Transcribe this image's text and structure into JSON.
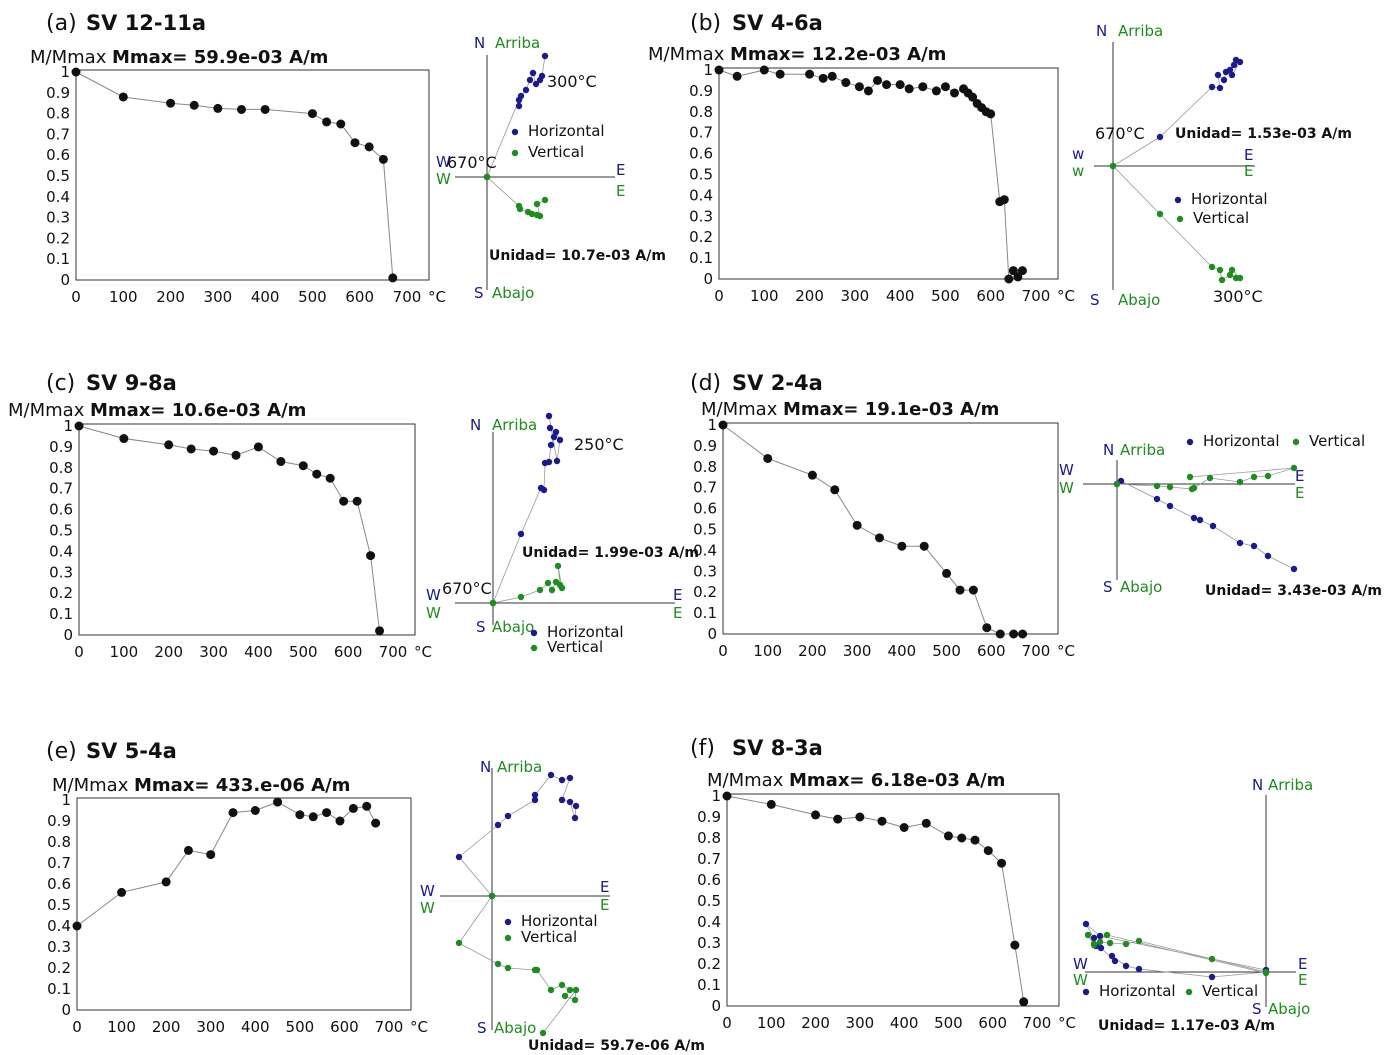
{
  "chart_data": [
    {
      "type": "line",
      "panel": "(a)",
      "sample": "SV 12-11a",
      "ylabel": "M/Mmax",
      "mmax_label": "Mmax= 59.9e-03  A/m",
      "xunit": "°C",
      "x_ticks": [
        0,
        100,
        200,
        300,
        400,
        500,
        600,
        700
      ],
      "y_ticks": [
        0,
        0.1,
        0.2,
        0.3,
        0.4,
        0.5,
        0.6,
        0.7,
        0.8,
        0.9,
        1
      ],
      "xlim": [
        0,
        700
      ],
      "ylim": [
        0,
        1
      ],
      "x": [
        0,
        100,
        200,
        250,
        300,
        350,
        400,
        500,
        530,
        560,
        590,
        620,
        650,
        670
      ],
      "y": [
        1.0,
        0.88,
        0.85,
        0.84,
        0.825,
        0.82,
        0.82,
        0.8,
        0.76,
        0.75,
        0.66,
        0.64,
        0.58,
        0.01
      ],
      "zijderveld": {
        "labels": {
          "N": "N",
          "S": "S",
          "E": "E",
          "W": "W",
          "E2": "E",
          "W2": "W",
          "up": "Arriba",
          "down": "Abajo"
        },
        "legend": {
          "horizontal": "Horizontal",
          "vertical": "Vertical"
        },
        "unidad": "Unidad=  10.7e-03 A/m",
        "annotations": [
          "300°C",
          "670°C"
        ]
      }
    },
    {
      "type": "line",
      "panel": "(b)",
      "sample": "SV 4-6a",
      "ylabel": "M/Mmax",
      "mmax_label": "Mmax= 12.2e-03  A/m",
      "xunit": "°C",
      "x_ticks": [
        0,
        100,
        200,
        300,
        400,
        500,
        600,
        700
      ],
      "y_ticks": [
        0,
        0.1,
        0.2,
        0.3,
        0.4,
        0.5,
        0.6,
        0.7,
        0.8,
        0.9,
        1
      ],
      "xlim": [
        0,
        700
      ],
      "ylim": [
        0,
        1
      ],
      "x": [
        0,
        40,
        100,
        135,
        200,
        230,
        250,
        280,
        310,
        330,
        350,
        370,
        400,
        420,
        450,
        480,
        500,
        520,
        540,
        550,
        560,
        570,
        580,
        590,
        600,
        620,
        630,
        640,
        650,
        660,
        670
      ],
      "y": [
        1.0,
        0.97,
        1.0,
        0.98,
        0.98,
        0.96,
        0.97,
        0.94,
        0.92,
        0.9,
        0.95,
        0.93,
        0.93,
        0.91,
        0.92,
        0.9,
        0.92,
        0.89,
        0.91,
        0.89,
        0.87,
        0.84,
        0.82,
        0.8,
        0.79,
        0.37,
        0.38,
        0.0,
        0.04,
        0.01,
        0.04
      ],
      "zijderveld": {
        "labels": {
          "N": "N",
          "S": "S",
          "E": "E",
          "W": "w",
          "E2": "E",
          "W2": "w",
          "up": "Arriba",
          "down": "Abajo"
        },
        "legend": {
          "horizontal": "Horizontal",
          "vertical": "Vertical"
        },
        "unidad": "Unidad=  1.53e-03 A/m",
        "annotations": [
          "670°C",
          "300°C"
        ]
      }
    },
    {
      "type": "line",
      "panel": "(c)",
      "sample": "SV 9-8a",
      "ylabel": "M/Mmax",
      "mmax_label": "Mmax= 10.6e-03  A/m",
      "xunit": "°C",
      "x_ticks": [
        0,
        100,
        200,
        300,
        400,
        500,
        600,
        700
      ],
      "y_ticks": [
        0,
        0.1,
        0.2,
        0.3,
        0.4,
        0.5,
        0.6,
        0.7,
        0.8,
        0.9,
        1
      ],
      "xlim": [
        0,
        700
      ],
      "ylim": [
        0,
        1
      ],
      "x": [
        0,
        100,
        200,
        250,
        300,
        350,
        400,
        450,
        500,
        530,
        560,
        590,
        620,
        650,
        670
      ],
      "y": [
        1.0,
        0.94,
        0.91,
        0.89,
        0.88,
        0.86,
        0.9,
        0.83,
        0.81,
        0.77,
        0.75,
        0.64,
        0.64,
        0.38,
        0.02
      ],
      "zijderveld": {
        "labels": {
          "N": "N",
          "S": "S",
          "E": "E",
          "W": "W",
          "E2": "E",
          "W2": "W",
          "up": "Arriba",
          "down": "Abajo"
        },
        "legend": {
          "horizontal": "Horizontal",
          "vertical": "Vertical"
        },
        "unidad": "Unidad=  1.99e-03 A/m",
        "annotations": [
          "250°C",
          "670°C"
        ]
      }
    },
    {
      "type": "line",
      "panel": "(d)",
      "sample": "SV 2-4a",
      "ylabel": "M/Mmax",
      "mmax_label": "Mmax= 19.1e-03  A/m",
      "xunit": "°C",
      "x_ticks": [
        0,
        100,
        200,
        300,
        400,
        500,
        600,
        700
      ],
      "y_ticks": [
        0,
        0.1,
        0.2,
        0.3,
        0.4,
        0.5,
        0.6,
        0.7,
        0.8,
        0.9,
        1
      ],
      "xlim": [
        0,
        700
      ],
      "ylim": [
        0,
        1
      ],
      "x": [
        0,
        100,
        200,
        250,
        300,
        350,
        400,
        450,
        500,
        530,
        560,
        590,
        620,
        650,
        670
      ],
      "y": [
        1.0,
        0.84,
        0.76,
        0.69,
        0.52,
        0.46,
        0.42,
        0.42,
        0.29,
        0.21,
        0.21,
        0.03,
        0.0,
        0.0,
        0.0
      ],
      "zijderveld": {
        "labels": {
          "N": "N",
          "S": "S",
          "E": "E",
          "W": "W",
          "E2": "E",
          "W2": "W",
          "up": "Arriba",
          "down": "Abajo"
        },
        "legend": {
          "horizontal": "Horizontal",
          "vertical": "Vertical"
        },
        "unidad": "Unidad=  3.43e-03 A/m",
        "annotations": []
      }
    },
    {
      "type": "line",
      "panel": "(e)",
      "sample": "SV 5-4a",
      "ylabel": "M/Mmax",
      "mmax_label": "Mmax= 433.e-06  A/m",
      "xunit": "°C",
      "x_ticks": [
        0,
        100,
        200,
        300,
        400,
        500,
        600,
        700
      ],
      "y_ticks": [
        0,
        0.1,
        0.2,
        0.3,
        0.4,
        0.5,
        0.6,
        0.7,
        0.8,
        0.9,
        1
      ],
      "xlim": [
        0,
        700
      ],
      "ylim": [
        0,
        1
      ],
      "x": [
        0,
        100,
        200,
        250,
        300,
        350,
        400,
        450,
        500,
        530,
        560,
        590,
        620,
        650,
        670
      ],
      "y": [
        0.4,
        0.56,
        0.61,
        0.76,
        0.74,
        0.94,
        0.95,
        0.99,
        0.93,
        0.92,
        0.94,
        0.9,
        0.96,
        0.97,
        0.89
      ],
      "zijderveld": {
        "labels": {
          "N": "N",
          "S": "S",
          "E": "E",
          "W": "W",
          "E2": "E",
          "W2": "W",
          "up": "Arriba",
          "down": "Abajo"
        },
        "legend": {
          "horizontal": "Horizontal",
          "vertical": "Vertical"
        },
        "unidad": "Unidad=  59.7e-06 A/m",
        "annotations": []
      }
    },
    {
      "type": "line",
      "panel": "(f)",
      "sample": "SV 8-3a",
      "ylabel": "M/Mmax",
      "mmax_label": "Mmax= 6.18e-03  A/m",
      "xunit": "°C",
      "x_ticks": [
        0,
        100,
        200,
        300,
        400,
        500,
        600,
        700
      ],
      "y_ticks": [
        0,
        0.1,
        0.2,
        0.3,
        0.4,
        0.5,
        0.6,
        0.7,
        0.8,
        0.9,
        1
      ],
      "xlim": [
        0,
        700
      ],
      "ylim": [
        0,
        1
      ],
      "x": [
        0,
        100,
        200,
        250,
        300,
        350,
        400,
        450,
        500,
        530,
        560,
        590,
        620,
        650,
        670
      ],
      "y": [
        1.0,
        0.96,
        0.91,
        0.89,
        0.9,
        0.88,
        0.85,
        0.87,
        0.81,
        0.8,
        0.79,
        0.74,
        0.68,
        0.29,
        0.02
      ],
      "zijderveld": {
        "labels": {
          "N": "N",
          "S": "S",
          "E": "E",
          "W": "W",
          "E2": "E",
          "W2": "W",
          "up": "Arriba",
          "down": "Abajo"
        },
        "legend": {
          "horizontal": "Horizontal",
          "vertical": "Vertical"
        },
        "unidad": "Unidad=  1.17e-03 A/m",
        "annotations": []
      }
    }
  ],
  "colors": {
    "point": "#111111",
    "line": "#888888",
    "horizontal": "#1a1a8c",
    "vertical": "#1e8c1e",
    "axis": "#333333"
  }
}
